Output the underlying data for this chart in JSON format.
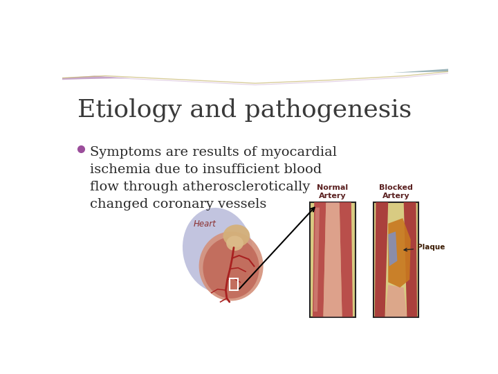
{
  "title": "Etiology and pathogenesis",
  "bullet_text": "Symptoms are results of myocardial\nischemia due to insufficient blood\nflow through atherosclerotically\nchanged coronary vessels",
  "bullet_color": "#9B4E9B",
  "title_color": "#3a3a3a",
  "text_color": "#2a2a2a",
  "bg_color": "#FFFFFF",
  "title_fontsize": 26,
  "bullet_fontsize": 14,
  "label_heart": "Heart",
  "label_normal": "Normal\nArtery",
  "label_blocked": "Blocked\nArtery",
  "label_plaque": "Plaque",
  "label_fontsize": 8,
  "wave_purple": "#C4A0C8",
  "wave_teal": "#90B8B4",
  "wave_gold": "#C8B870"
}
